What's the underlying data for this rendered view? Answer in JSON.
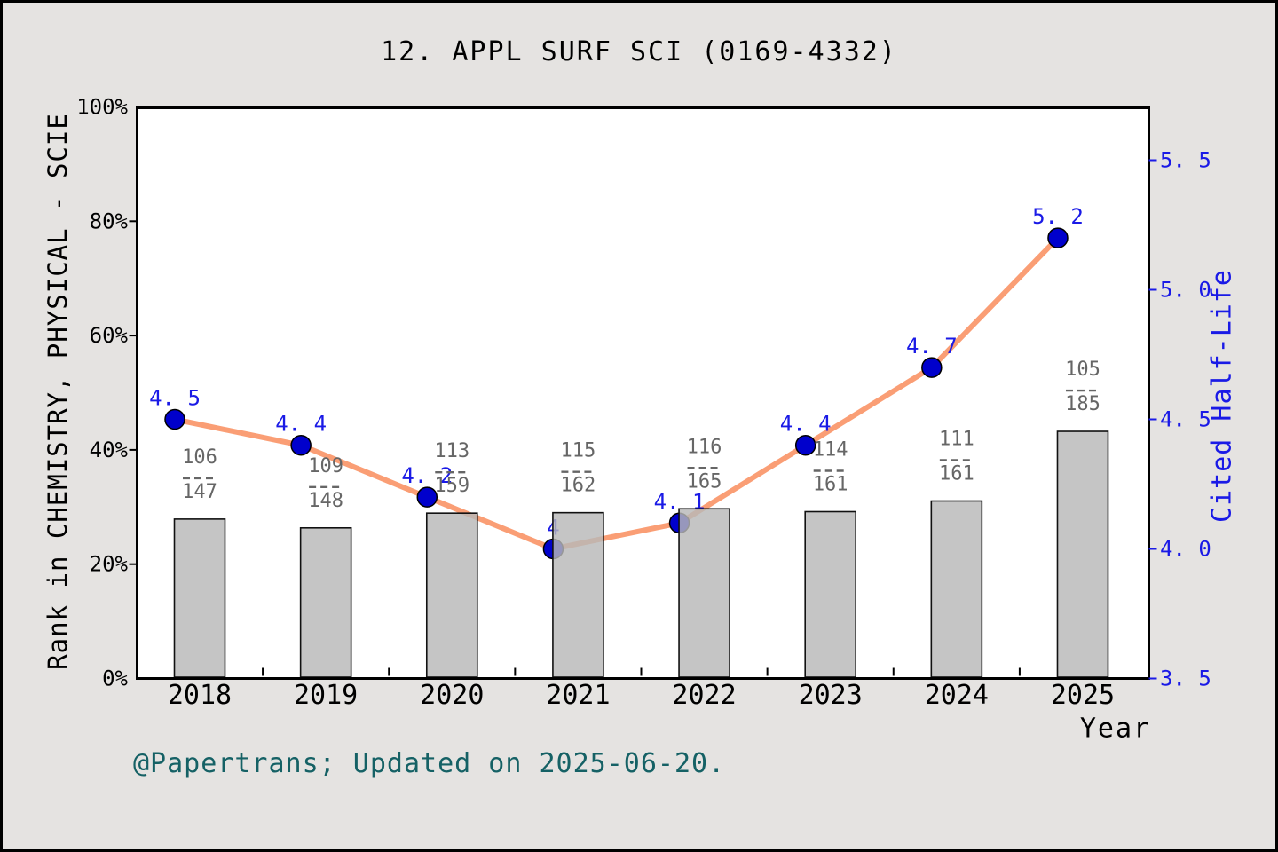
{
  "title": "12. APPL SURF SCI (0169-4332)",
  "footer": "@Papertrans; Updated on 2025-06-20.",
  "x_axis": {
    "title": "Year",
    "tick_labels": [
      "2018",
      "2019",
      "2020",
      "2021",
      "2022",
      "2023",
      "2024",
      "2025"
    ]
  },
  "left_axis": {
    "title": "Rank in CHEMISTRY, PHYSICAL - SCIE",
    "tick_labels": [
      "0%",
      "20%",
      "40%",
      "60%",
      "80%",
      "100%"
    ],
    "tick_values": [
      0,
      20,
      40,
      60,
      80,
      100
    ],
    "range": [
      0,
      100
    ]
  },
  "right_axis": {
    "title": "Cited Half-Life",
    "tick_labels": [
      "3. 5",
      "4. 0",
      "4. 5",
      "5. 0",
      "5. 5"
    ],
    "tick_values": [
      3.5,
      4.0,
      4.5,
      5.0,
      5.5
    ],
    "range": [
      3.5,
      5.5
    ]
  },
  "chart_data": {
    "type": "bar+line",
    "categories": [
      "2018",
      "2019",
      "2020",
      "2021",
      "2022",
      "2023",
      "2024",
      "2025"
    ],
    "grid": false,
    "legend": "none",
    "series": [
      {
        "name": "Rank in CHEMISTRY, PHYSICAL - SCIE",
        "type": "bar",
        "axis": "left",
        "fractions": [
          {
            "numerator": "106",
            "denominator": "147"
          },
          {
            "numerator": "109",
            "denominator": "148"
          },
          {
            "numerator": "113",
            "denominator": "159"
          },
          {
            "numerator": "115",
            "denominator": "162"
          },
          {
            "numerator": "116",
            "denominator": "165"
          },
          {
            "numerator": "114",
            "denominator": "161"
          },
          {
            "numerator": "111",
            "denominator": "161"
          },
          {
            "numerator": "105",
            "denominator": "185"
          }
        ],
        "values_percent": [
          27.9,
          26.4,
          28.9,
          29.0,
          29.7,
          29.2,
          31.1,
          43.2
        ]
      },
      {
        "name": "Cited Half-Life",
        "type": "line",
        "axis": "right",
        "values": [
          4.5,
          4.4,
          4.2,
          4.0,
          4.1,
          4.4,
          4.7,
          5.2
        ],
        "point_labels": [
          "4. 5",
          "4. 4",
          "4. 2",
          "4",
          "4. 1",
          "4. 4",
          "4. 7",
          "5. 2"
        ]
      }
    ]
  },
  "colors": {
    "background": "#e5e3e1",
    "plot_background": "#ffffff",
    "bar_fill": "#b8b8b8",
    "bar_edge": "#111111",
    "line": "#fa9e75",
    "dot_fill": "#0000cc",
    "dot_edge": "#000000",
    "blue_text": "#1a1ae6",
    "fraction_text": "#666666",
    "footer_text": "#156165",
    "axis_frame": "#000000"
  }
}
